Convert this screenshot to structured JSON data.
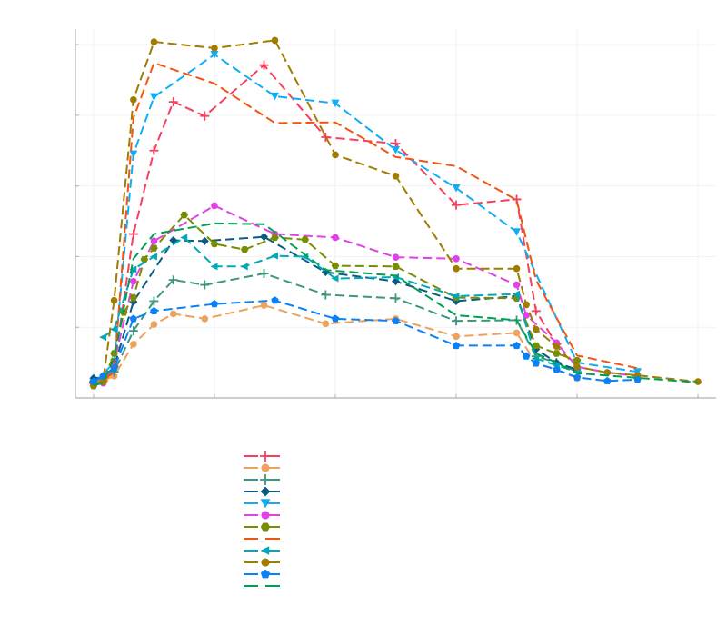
{
  "chart_data": {
    "type": "line",
    "title": "",
    "xlabel": "",
    "ylabel": "",
    "xlim": [
      -0.15,
      5.15
    ],
    "ylim": [
      0,
      5.22
    ],
    "x_ticks": [
      0,
      1,
      2,
      3,
      4,
      5
    ],
    "y_ticks": [
      1,
      2,
      3,
      4,
      5
    ],
    "tick_labels_shown": false,
    "grid": true,
    "legend": "bottom-center",
    "line_style": "dashed",
    "series": [
      {
        "color": "#f5405f",
        "marker": "cross",
        "x": [
          0,
          0.08,
          0.17,
          0.33,
          0.5,
          0.66,
          0.92,
          1.41,
          1.92,
          2.5,
          3,
          3.5,
          3.66,
          3.83
        ],
        "y": [
          0.21,
          0.24,
          0.44,
          2.32,
          3.5,
          4.19,
          3.99,
          4.71,
          3.69,
          3.6,
          2.73,
          2.81,
          1.23,
          0.76
        ]
      },
      {
        "color": "#eba35e",
        "marker": "circle",
        "x": [
          0,
          0.17,
          0.33,
          0.5,
          0.66,
          0.92,
          1.41,
          1.92,
          2.5,
          3,
          3.5,
          3.66,
          3.83,
          4
        ],
        "y": [
          0.18,
          0.31,
          0.76,
          1.04,
          1.19,
          1.12,
          1.31,
          1.05,
          1.12,
          0.87,
          0.92,
          0.49,
          0.4,
          0.28
        ]
      },
      {
        "color": "#3e9680",
        "marker": "cross",
        "x": [
          0,
          0.17,
          0.33,
          0.5,
          0.66,
          0.92,
          1.41,
          1.92,
          2.5,
          3,
          3.5,
          3.66,
          3.83,
          4
        ],
        "y": [
          0.23,
          0.37,
          0.95,
          1.37,
          1.67,
          1.6,
          1.76,
          1.46,
          1.41,
          1.09,
          1.1,
          0.59,
          0.5,
          0.37
        ]
      },
      {
        "color": "#0b5a80",
        "marker": "diamond",
        "x": [
          0,
          0.08,
          0.17,
          0.33,
          0.66,
          0.92,
          1.41,
          1.92,
          2.5,
          3,
          3.5,
          3.66,
          3.83,
          4
        ],
        "y": [
          0.28,
          0.29,
          0.44,
          1.36,
          2.23,
          2.22,
          2.28,
          1.78,
          1.65,
          1.37,
          1.44,
          0.69,
          0.5,
          0.4
        ]
      },
      {
        "color": "#0eadf5",
        "marker": "triangle-down",
        "x": [
          0,
          0.17,
          0.33,
          0.5,
          1,
          1.5,
          2,
          2.5,
          3,
          3.5,
          4,
          4.5
        ],
        "y": [
          0.21,
          0.5,
          3.45,
          4.26,
          4.86,
          4.27,
          4.17,
          3.51,
          2.97,
          2.35,
          0.5,
          0.37
        ]
      },
      {
        "color": "#e042e8",
        "marker": "circle",
        "x": [
          0,
          0.08,
          0.17,
          0.33,
          0.5,
          1,
          1.5,
          2,
          2.5,
          3,
          3.5,
          3.58,
          3.83,
          4,
          4.25,
          4.5
        ],
        "y": [
          0.18,
          0.21,
          0.5,
          1.65,
          2.22,
          2.72,
          2.32,
          2.27,
          1.99,
          1.97,
          1.6,
          1.17,
          0.78,
          0.44,
          0.36,
          0.31
        ]
      },
      {
        "color": "#7a8c00",
        "marker": "hexagon",
        "x": [
          0,
          0.08,
          0.17,
          0.25,
          0.33,
          0.42,
          0.5,
          0.75,
          1,
          1.25,
          1.5,
          1.75,
          2,
          2.5,
          3,
          3.5,
          3.66,
          3.83,
          4
        ],
        "y": [
          0.17,
          0.23,
          0.63,
          1.21,
          1.42,
          1.96,
          2.12,
          2.59,
          2.18,
          2.1,
          2.27,
          2.24,
          1.87,
          1.86,
          1.42,
          1.41,
          0.74,
          0.63,
          0.53
        ]
      },
      {
        "color": "#f2550f",
        "marker": "none",
        "x": [
          0,
          0.08,
          0.17,
          0.33,
          0.5,
          1,
          1.5,
          2,
          2.5,
          3,
          3.5,
          3.66,
          4,
          4.5
        ],
        "y": [
          0.21,
          0.24,
          0.37,
          3.96,
          4.74,
          4.45,
          3.89,
          3.9,
          3.41,
          3.28,
          2.8,
          1.67,
          0.6,
          0.42
        ]
      },
      {
        "color": "#00a9b8",
        "marker": "triangle-left",
        "x": [
          0.08,
          0.17,
          0.33,
          0.5,
          0.75,
          1,
          1.25,
          1.5,
          1.75,
          2,
          2.5,
          3,
          3.5,
          3.66,
          3.83,
          4
        ],
        "y": [
          0.86,
          0.97,
          1.82,
          2.0,
          2.27,
          1.86,
          1.86,
          2.01,
          2.0,
          1.69,
          1.71,
          1.44,
          1.47,
          0.56,
          0.46,
          0.37
        ]
      },
      {
        "color": "#a07c00",
        "marker": "circle",
        "x": [
          0,
          0.08,
          0.17,
          0.33,
          0.5,
          1,
          1.5,
          2,
          2.5,
          3,
          3.5,
          3.58,
          3.66,
          3.83,
          4,
          4.25,
          4.5,
          5
        ],
        "y": [
          0.18,
          0.26,
          1.38,
          4.22,
          5.04,
          4.95,
          5.06,
          3.44,
          3.14,
          1.83,
          1.83,
          1.32,
          0.97,
          0.73,
          0.44,
          0.36,
          0.32,
          0.23
        ]
      },
      {
        "color": "#0a82f5",
        "marker": "pentagon",
        "x": [
          0,
          0.08,
          0.17,
          0.33,
          0.5,
          1,
          1.5,
          2,
          2.5,
          3,
          3.5,
          3.58,
          3.66,
          3.83,
          4,
          4.25,
          4.5
        ],
        "y": [
          0.23,
          0.31,
          0.42,
          1.12,
          1.23,
          1.33,
          1.38,
          1.12,
          1.09,
          0.74,
          0.74,
          0.59,
          0.49,
          0.4,
          0.29,
          0.24,
          0.26
        ]
      },
      {
        "color": "#00a04f",
        "marker": "none",
        "x": [
          0,
          0.08,
          0.17,
          0.33,
          0.5,
          1,
          1.41,
          1.92,
          2.5,
          3,
          3.5,
          3.66,
          3.83,
          4,
          5
        ],
        "y": [
          0.18,
          0.22,
          0.56,
          1.97,
          2.32,
          2.47,
          2.46,
          1.81,
          1.73,
          1.17,
          1.1,
          0.63,
          0.5,
          0.35,
          0.22
        ]
      }
    ]
  }
}
